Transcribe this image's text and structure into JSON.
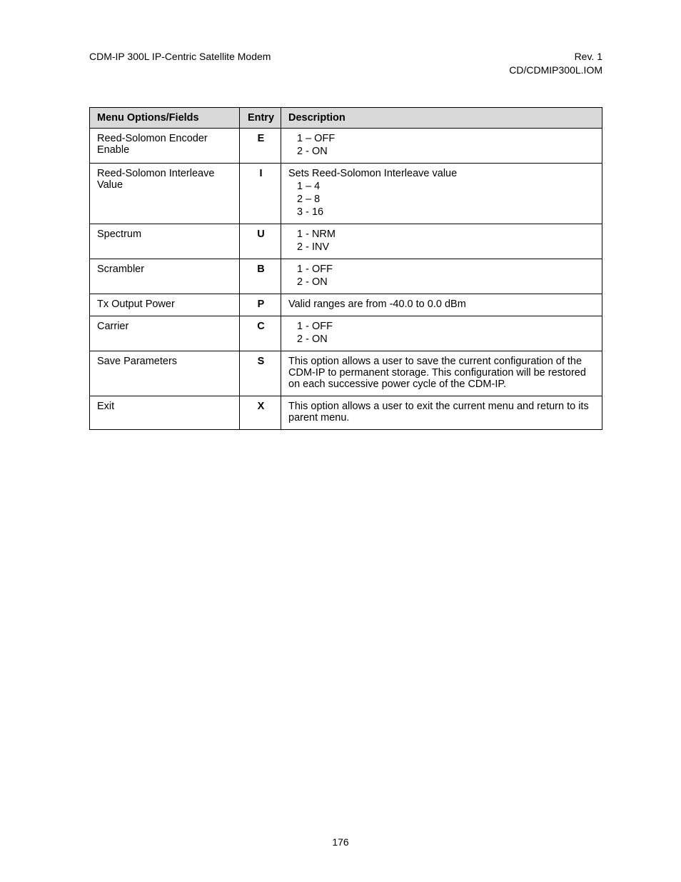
{
  "header": {
    "left": "CDM-IP 300L IP-Centric Satellite Modem",
    "right_line1": "Rev. 1",
    "right_line2": "CD/CDMIP300L.IOM"
  },
  "table": {
    "columns": {
      "menu": "Menu Options/Fields",
      "entry": "Entry",
      "desc": "Description"
    },
    "rows": [
      {
        "menu": "Reed-Solomon Encoder Enable",
        "entry": "E",
        "desc": [
          {
            "text": "1 – OFF",
            "indent": true
          },
          {
            "text": "2 - ON",
            "indent": true
          }
        ]
      },
      {
        "menu": "Reed-Solomon Interleave Value",
        "entry": "I",
        "desc": [
          {
            "text": "Sets Reed-Solomon Interleave value",
            "indent": false
          },
          {
            "text": "1 – 4",
            "indent": true
          },
          {
            "text": "2 – 8",
            "indent": true
          },
          {
            "text": "3 - 16",
            "indent": true
          }
        ]
      },
      {
        "menu": "Spectrum",
        "entry": "U",
        "desc": [
          {
            "text": "1 - NRM",
            "indent": true
          },
          {
            "text": "2 - INV",
            "indent": true
          }
        ]
      },
      {
        "menu": "Scrambler",
        "entry": "B",
        "desc": [
          {
            "text": "1 - OFF",
            "indent": true
          },
          {
            "text": "2 - ON",
            "indent": true
          }
        ]
      },
      {
        "menu": "Tx Output Power",
        "entry": "P",
        "desc": [
          {
            "text": "Valid ranges are from  -40.0 to   0.0 dBm",
            "indent": false
          }
        ]
      },
      {
        "menu": "Carrier",
        "entry": "C",
        "desc": [
          {
            "text": "1 - OFF",
            "indent": true
          },
          {
            "text": "2 - ON",
            "indent": true
          }
        ]
      },
      {
        "menu": "Save Parameters",
        "entry": "S",
        "desc": [
          {
            "text": "This option allows a user to save the current configuration of the CDM-IP to permanent storage. This configuration will be restored on each successive power cycle of the CDM-IP.",
            "indent": false
          }
        ]
      },
      {
        "menu": "Exit",
        "entry": "X",
        "desc": [
          {
            "text": "This option allows a user to exit the current menu and return to its parent menu.",
            "indent": false
          }
        ]
      }
    ]
  },
  "footer": {
    "page_number": "176"
  }
}
